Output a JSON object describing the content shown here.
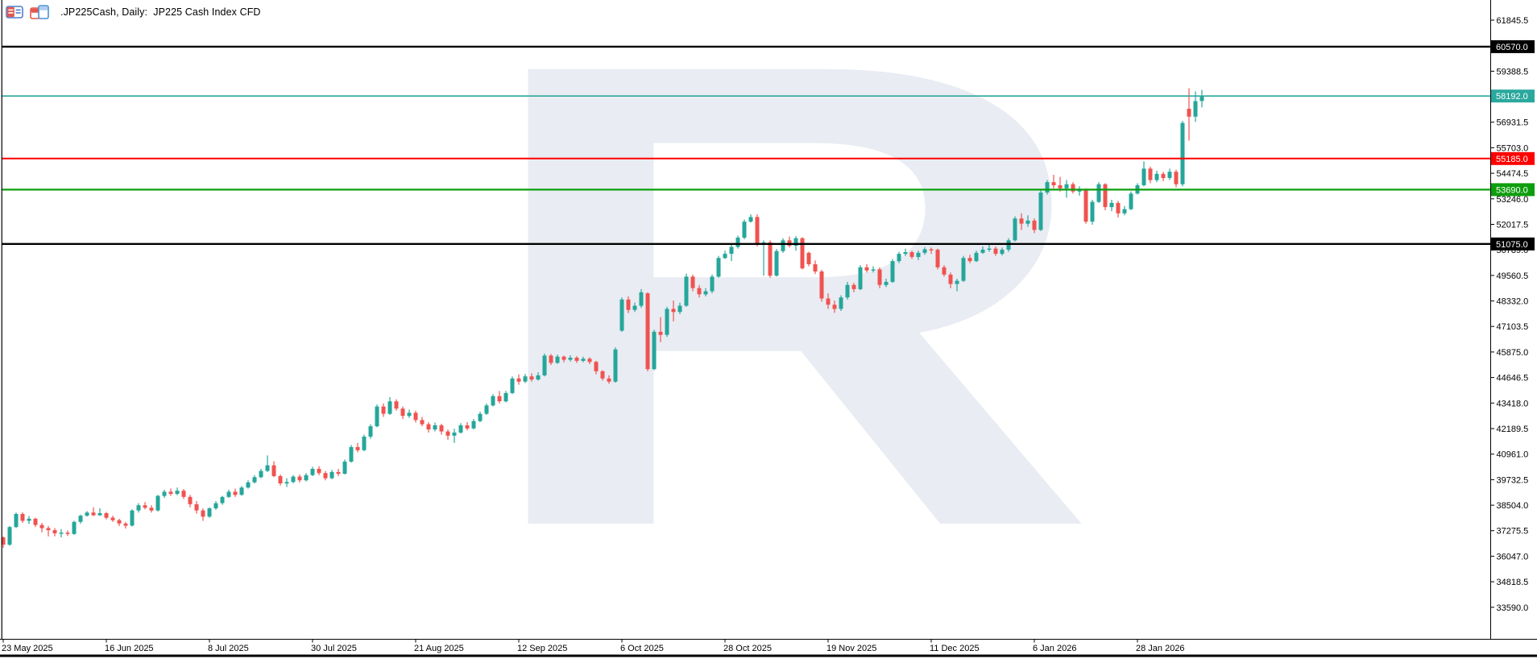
{
  "header": {
    "title": ".JP225Cash, Daily:  JP225 Cash Index CFD",
    "icons": [
      "quotes-table-icon",
      "chart-window-icon"
    ]
  },
  "colors": {
    "background": "#ffffff",
    "candle_up": "#26a69a",
    "candle_down": "#ef5350",
    "axis_text": "#000000",
    "border": "#000000",
    "badge_text": "#ffffff"
  },
  "watermark": {
    "letter": "R",
    "color": "#e9ecf3"
  },
  "chart_data": {
    "type": "candlestick",
    "symbol": ".JP225Cash",
    "timeframe": "Daily",
    "title": ".JP225Cash, Daily:  JP225 Cash Index CFD",
    "last_price": 58192.0,
    "y_axis": {
      "ticks": [
        61845.5,
        59388.5,
        56931.5,
        55703.0,
        54474.5,
        53246.0,
        52017.5,
        50789.0,
        49560.5,
        48332.0,
        47103.5,
        45875.0,
        44646.5,
        43418.0,
        42189.5,
        40961.0,
        39732.5,
        38504.0,
        37275.5,
        36047.0,
        34818.5,
        33590.0
      ],
      "range_top": 61845.5,
      "range_bottom": 33590.0,
      "grid": false
    },
    "x_axis": {
      "labels": [
        {
          "label": "23 May 2025",
          "idx": 0
        },
        {
          "label": "16 Jun 2025",
          "idx": 16
        },
        {
          "label": "8 Jul 2025",
          "idx": 32
        },
        {
          "label": "30 Jul 2025",
          "idx": 48
        },
        {
          "label": "21 Aug 2025",
          "idx": 64
        },
        {
          "label": "12 Sep 2025",
          "idx": 80
        },
        {
          "label": "6 Oct 2025",
          "idx": 96
        },
        {
          "label": "28 Oct 2025",
          "idx": 112
        },
        {
          "label": "19 Nov 2025",
          "idx": 128
        },
        {
          "label": "11 Dec 2025",
          "idx": 144
        },
        {
          "label": "6 Jan 2026",
          "idx": 160
        },
        {
          "label": "28 Jan 2026",
          "idx": 176
        }
      ]
    },
    "horizontal_lines": [
      {
        "value": 60570.0,
        "label": "60570.0",
        "color": "#000000",
        "width": 2.4
      },
      {
        "value": 58192.0,
        "label": "58192.0",
        "color": "#2ba89d",
        "width": 1.6
      },
      {
        "value": 55185.0,
        "label": "55185.0",
        "color": "#ff0000",
        "width": 2.0
      },
      {
        "value": 53690.0,
        "label": "53690.0",
        "color": "#0d9e0d",
        "width": 2.2
      },
      {
        "value": 51075.0,
        "label": "51075.0",
        "color": "#000000",
        "width": 2.4
      }
    ],
    "candles": [
      [
        36950,
        37000,
        36450,
        36600
      ],
      [
        36600,
        37500,
        36550,
        37450
      ],
      [
        37450,
        38150,
        37400,
        38080
      ],
      [
        38080,
        38160,
        37650,
        37750
      ],
      [
        37750,
        37980,
        37600,
        37850
      ],
      [
        37850,
        37900,
        37450,
        37550
      ],
      [
        37550,
        37650,
        37200,
        37400
      ],
      [
        37400,
        37500,
        37000,
        37300
      ],
      [
        37300,
        37400,
        37000,
        37150
      ],
      [
        37150,
        37350,
        36950,
        37180
      ],
      [
        37180,
        37280,
        37020,
        37120
      ],
      [
        37120,
        37750,
        37080,
        37700
      ],
      [
        37700,
        38050,
        37620,
        38000
      ],
      [
        38000,
        38220,
        37950,
        38150
      ],
      [
        38150,
        38400,
        37980,
        38020
      ],
      [
        38020,
        38350,
        37990,
        38120
      ],
      [
        38120,
        38180,
        37820,
        37900
      ],
      [
        37900,
        38000,
        37700,
        37780
      ],
      [
        37780,
        37850,
        37500,
        37620
      ],
      [
        37620,
        37700,
        37380,
        37520
      ],
      [
        37520,
        38300,
        37480,
        38250
      ],
      [
        38250,
        38600,
        38150,
        38500
      ],
      [
        38500,
        38650,
        38300,
        38380
      ],
      [
        38380,
        38500,
        38150,
        38250
      ],
      [
        38250,
        39000,
        38200,
        38950
      ],
      [
        38950,
        39250,
        38850,
        39150
      ],
      [
        39150,
        39300,
        38950,
        39050
      ],
      [
        39050,
        39350,
        38980,
        39200
      ],
      [
        39200,
        39280,
        38800,
        38900
      ],
      [
        38900,
        39000,
        38400,
        38550
      ],
      [
        38550,
        38700,
        38100,
        38250
      ],
      [
        38250,
        38350,
        37750,
        37950
      ],
      [
        37950,
        38400,
        37900,
        38350
      ],
      [
        38350,
        38700,
        38280,
        38600
      ],
      [
        38600,
        38950,
        38520,
        38900
      ],
      [
        38900,
        39250,
        38850,
        39150
      ],
      [
        39150,
        39300,
        38900,
        39000
      ],
      [
        39000,
        39420,
        38950,
        39350
      ],
      [
        39350,
        39700,
        39300,
        39600
      ],
      [
        39600,
        39950,
        39550,
        39850
      ],
      [
        39850,
        40250,
        39800,
        40150
      ],
      [
        40150,
        40900,
        40100,
        40420
      ],
      [
        40420,
        40620,
        39850,
        39900
      ],
      [
        39900,
        39980,
        39450,
        39550
      ],
      [
        39550,
        39800,
        39380,
        39620
      ],
      [
        39620,
        39950,
        39560,
        39880
      ],
      [
        39880,
        39980,
        39600,
        39700
      ],
      [
        39700,
        40050,
        39650,
        39950
      ],
      [
        39950,
        40350,
        39900,
        40250
      ],
      [
        40250,
        40380,
        39950,
        40050
      ],
      [
        40050,
        40150,
        39700,
        39800
      ],
      [
        39800,
        40200,
        39750,
        40100
      ],
      [
        40100,
        40250,
        39900,
        40020
      ],
      [
        40020,
        40700,
        39980,
        40600
      ],
      [
        40600,
        41400,
        40550,
        41300
      ],
      [
        41300,
        41500,
        41050,
        41150
      ],
      [
        41150,
        41900,
        41100,
        41800
      ],
      [
        41800,
        42400,
        41700,
        42300
      ],
      [
        42300,
        43350,
        42250,
        43250
      ],
      [
        43250,
        43400,
        42750,
        42900
      ],
      [
        42900,
        43700,
        42850,
        43500
      ],
      [
        43500,
        43600,
        43050,
        43150
      ],
      [
        43150,
        43250,
        42650,
        42800
      ],
      [
        42800,
        43100,
        42700,
        42950
      ],
      [
        42950,
        43050,
        42480,
        42600
      ],
      [
        42600,
        42750,
        42300,
        42400
      ],
      [
        42400,
        42500,
        42000,
        42150
      ],
      [
        42150,
        42480,
        42050,
        42350
      ],
      [
        42350,
        42420,
        41900,
        42050
      ],
      [
        42050,
        42150,
        41650,
        41850
      ],
      [
        41850,
        42180,
        41500,
        42000
      ],
      [
        42000,
        42450,
        41950,
        42350
      ],
      [
        42350,
        42500,
        42100,
        42200
      ],
      [
        42200,
        42650,
        42150,
        42550
      ],
      [
        42550,
        43000,
        42500,
        42900
      ],
      [
        42900,
        43400,
        42850,
        43300
      ],
      [
        43300,
        43850,
        43250,
        43750
      ],
      [
        43750,
        44000,
        43400,
        43500
      ],
      [
        43500,
        44000,
        43450,
        43900
      ],
      [
        43900,
        44700,
        43850,
        44600
      ],
      [
        44600,
        44800,
        44300,
        44450
      ],
      [
        44450,
        44820,
        44380,
        44700
      ],
      [
        44700,
        44850,
        44450,
        44550
      ],
      [
        44550,
        44900,
        44500,
        44750
      ],
      [
        44750,
        45800,
        44700,
        45700
      ],
      [
        45700,
        45780,
        45250,
        45350
      ],
      [
        45350,
        45750,
        45300,
        45650
      ],
      [
        45650,
        45700,
        45380,
        45500
      ],
      [
        45500,
        45720,
        45420,
        45600
      ],
      [
        45600,
        45680,
        45350,
        45450
      ],
      [
        45450,
        45650,
        45380,
        45550
      ],
      [
        45550,
        45620,
        45300,
        45400
      ],
      [
        45400,
        45450,
        44800,
        44950
      ],
      [
        44950,
        45000,
        44500,
        44600
      ],
      [
        44600,
        44750,
        44350,
        44450
      ],
      [
        44450,
        46100,
        44400,
        46000
      ],
      [
        46900,
        48500,
        46850,
        48400
      ],
      [
        48400,
        48550,
        47750,
        47900
      ],
      [
        47900,
        48250,
        47800,
        48100
      ],
      [
        48100,
        48900,
        48000,
        48750
      ],
      [
        48700,
        48750,
        44950,
        45050
      ],
      [
        45050,
        46950,
        45000,
        46850
      ],
      [
        46850,
        47550,
        46350,
        46700
      ],
      [
        46700,
        48050,
        46600,
        47950
      ],
      [
        47950,
        48350,
        47350,
        47800
      ],
      [
        47800,
        48250,
        47700,
        48100
      ],
      [
        48100,
        49650,
        48050,
        49500
      ],
      [
        49500,
        49600,
        48800,
        48950
      ],
      [
        48950,
        49100,
        48500,
        48650
      ],
      [
        48650,
        48950,
        48550,
        48800
      ],
      [
        48800,
        49600,
        48700,
        49500
      ],
      [
        49500,
        50500,
        49450,
        50400
      ],
      [
        50400,
        50750,
        50350,
        50600
      ],
      [
        50600,
        51100,
        50250,
        50930
      ],
      [
        50930,
        51480,
        50850,
        51380
      ],
      [
        51380,
        52250,
        51300,
        52150
      ],
      [
        52150,
        52500,
        52100,
        52370
      ],
      [
        52370,
        52500,
        50950,
        51050
      ],
      [
        51050,
        51250,
        49550,
        51150
      ],
      [
        51150,
        51250,
        49450,
        49550
      ],
      [
        49550,
        50830,
        49500,
        50730
      ],
      [
        50730,
        51350,
        50650,
        51250
      ],
      [
        51250,
        51430,
        50900,
        50990
      ],
      [
        50990,
        51450,
        50750,
        51350
      ],
      [
        51350,
        51400,
        49850,
        49900
      ],
      [
        50650,
        50700,
        50000,
        50100
      ],
      [
        50100,
        50280,
        49630,
        49750
      ],
      [
        49750,
        49830,
        48300,
        48450
      ],
      [
        48450,
        48700,
        47950,
        48150
      ],
      [
        48150,
        48350,
        47760,
        47950
      ],
      [
        47950,
        48600,
        47850,
        48500
      ],
      [
        48500,
        49250,
        48400,
        49100
      ],
      [
        49100,
        49200,
        48750,
        48900
      ],
      [
        48900,
        50050,
        48850,
        49950
      ],
      [
        49950,
        50100,
        49700,
        49800
      ],
      [
        49800,
        50000,
        49700,
        49850
      ],
      [
        49850,
        49950,
        48950,
        49100
      ],
      [
        49100,
        49400,
        49000,
        49250
      ],
      [
        49250,
        50350,
        49200,
        50250
      ],
      [
        50250,
        50700,
        50150,
        50600
      ],
      [
        50600,
        50850,
        50500,
        50680
      ],
      [
        50680,
        50750,
        50350,
        50450
      ],
      [
        50450,
        50750,
        50300,
        50650
      ],
      [
        50650,
        50920,
        50550,
        50820
      ],
      [
        50820,
        50900,
        50600,
        50800
      ],
      [
        50800,
        50850,
        49850,
        49950
      ],
      [
        49950,
        50050,
        49500,
        49600
      ],
      [
        49600,
        49700,
        48950,
        49150
      ],
      [
        49150,
        49400,
        48800,
        49300
      ],
      [
        49300,
        50500,
        49250,
        50400
      ],
      [
        50400,
        50550,
        50150,
        50250
      ],
      [
        50250,
        50750,
        50200,
        50650
      ],
      [
        50650,
        50950,
        50600,
        50800
      ],
      [
        50800,
        51050,
        50700,
        50850
      ],
      [
        50850,
        50950,
        50500,
        50600
      ],
      [
        50600,
        50900,
        50520,
        50800
      ],
      [
        50800,
        51350,
        50700,
        51250
      ],
      [
        51250,
        52400,
        51200,
        52300
      ],
      [
        52300,
        52550,
        51750,
        52050
      ],
      [
        52050,
        52450,
        51900,
        52200
      ],
      [
        52200,
        52300,
        51600,
        51750
      ],
      [
        51750,
        53650,
        51700,
        53550
      ],
      [
        53550,
        54150,
        53450,
        54050
      ],
      [
        54050,
        54400,
        53750,
        53900
      ],
      [
        53900,
        54300,
        53600,
        53750
      ],
      [
        53750,
        54150,
        53300,
        53950
      ],
      [
        53950,
        54050,
        53500,
        53600
      ],
      [
        53600,
        53850,
        53400,
        53700
      ],
      [
        53700,
        53750,
        52050,
        52150
      ],
      [
        52150,
        53200,
        52000,
        53100
      ],
      [
        53100,
        54050,
        53050,
        53950
      ],
      [
        53950,
        54000,
        52700,
        52850
      ],
      [
        52850,
        53200,
        52650,
        53050
      ],
      [
        53050,
        53150,
        52350,
        52550
      ],
      [
        52550,
        52900,
        52450,
        52750
      ],
      [
        52750,
        53600,
        52700,
        53500
      ],
      [
        53500,
        54000,
        53450,
        53900
      ],
      [
        53900,
        55050,
        53850,
        54700
      ],
      [
        54700,
        54800,
        54000,
        54150
      ],
      [
        54150,
        54600,
        54050,
        54450
      ],
      [
        54450,
        54550,
        54100,
        54250
      ],
      [
        54250,
        54700,
        54150,
        54550
      ],
      [
        54550,
        54650,
        53800,
        53950
      ],
      [
        53950,
        57000,
        53850,
        56900
      ],
      [
        57580,
        58570,
        56050,
        57200
      ],
      [
        57200,
        58420,
        56950,
        57950
      ],
      [
        57950,
        58490,
        57650,
        58192
      ]
    ]
  }
}
